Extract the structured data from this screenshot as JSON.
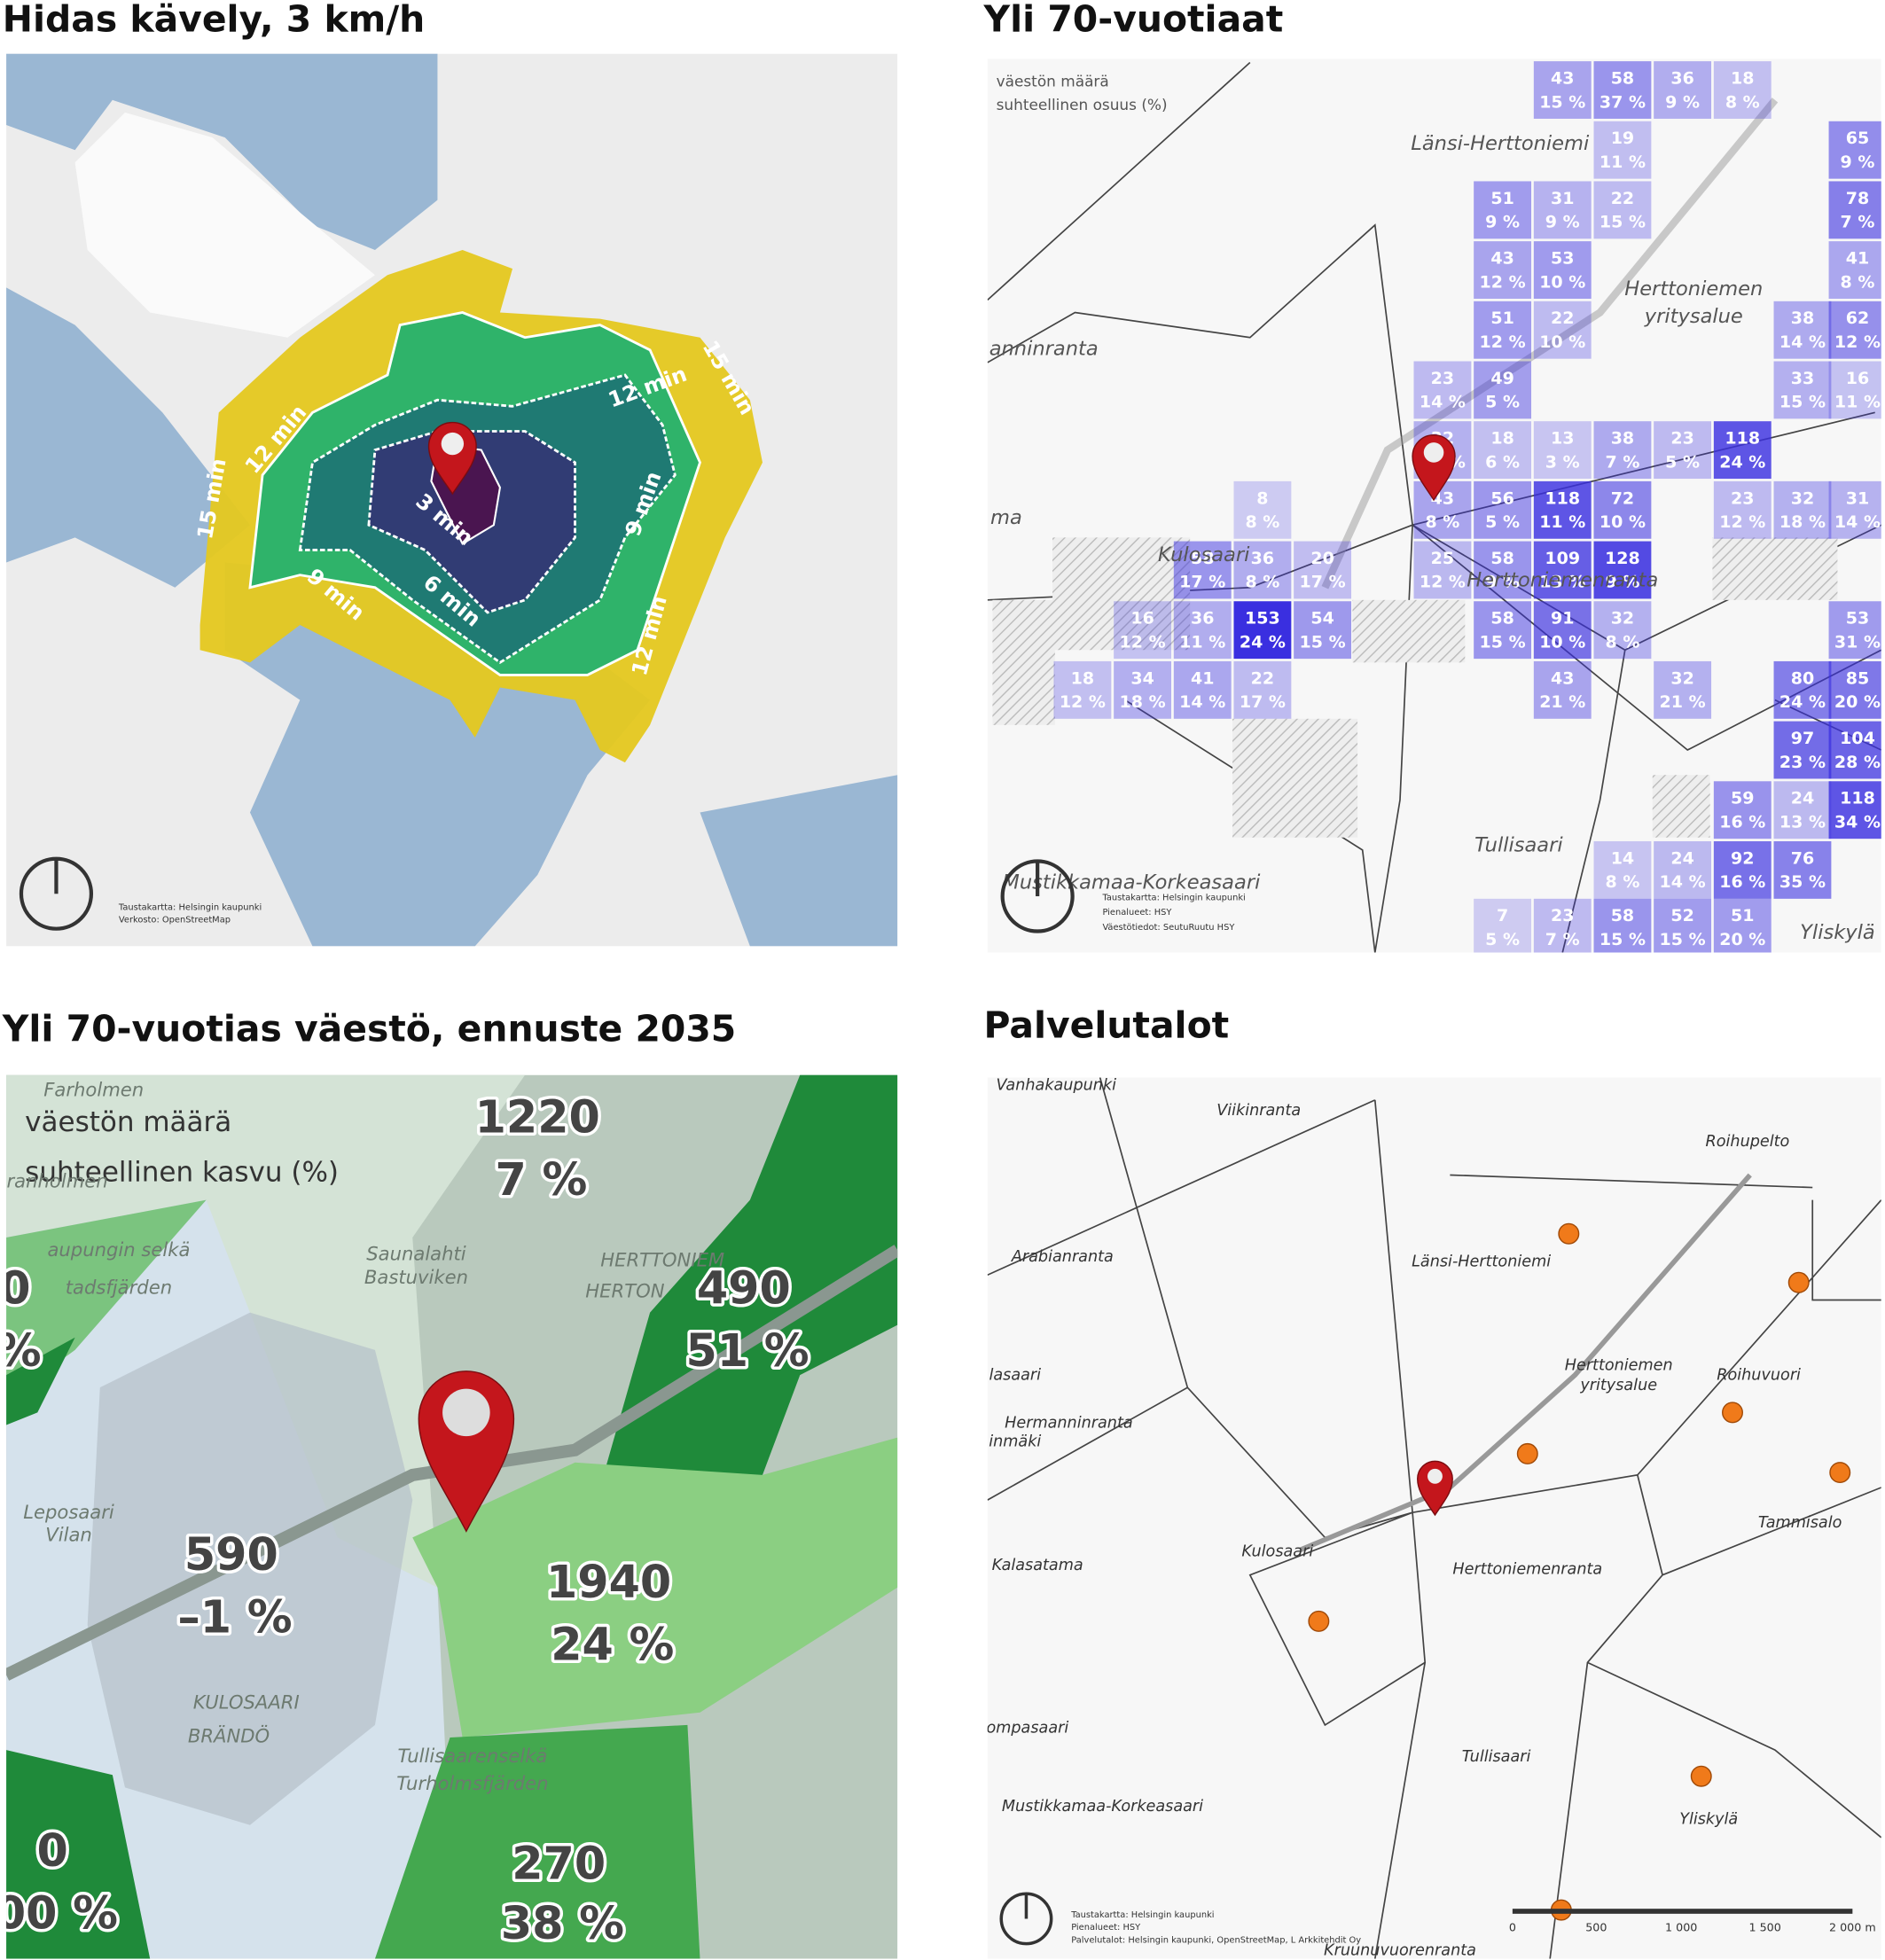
{
  "panels": [
    {
      "title": "Hidas kävely, 3 km/h",
      "isochrone_labels": [
        "15 min",
        "12 min",
        "12 min",
        "15 min",
        "9 min",
        "3 min",
        "9 min",
        "6 min",
        "12 min"
      ],
      "credits": [
        "Taustakartta: Helsingin kaupunki",
        "Verkosto: OpenStreetMap"
      ]
    },
    {
      "title": "Yli 70-vuotiaat",
      "legend": [
        "väestön määrä",
        "suhteellinen osuus (%)"
      ],
      "places": [
        "Länsi-Herttoniemi",
        "Herttoniemen",
        "yritysalue",
        "anninranta",
        "ma",
        "Kulosaari",
        "Herttoniemenranta",
        "Tullisaari",
        "Mustikkamaa-Korkeasaari",
        "Yliskylä"
      ],
      "cells": [
        {
          "count": 43,
          "share": "15 %"
        },
        {
          "count": 58,
          "share": "37 %"
        },
        {
          "count": 36,
          "share": "9 %"
        },
        {
          "count": 18,
          "share": "8 %"
        },
        {
          "count": 19,
          "share": "11 %"
        },
        {
          "count": 65,
          "share": "9 %"
        },
        {
          "count": 51,
          "share": "9 %"
        },
        {
          "count": 31,
          "share": "9 %"
        },
        {
          "count": 22,
          "share": "15 %"
        },
        {
          "count": 78,
          "share": "7 %"
        },
        {
          "count": 43,
          "share": "12 %"
        },
        {
          "count": 53,
          "share": "10 %"
        },
        {
          "count": 41,
          "share": "8 %"
        },
        {
          "count": 51,
          "share": "12 %"
        },
        {
          "count": 22,
          "share": "10 %"
        },
        {
          "count": 38,
          "share": "14 %"
        },
        {
          "count": 62,
          "share": "12 %"
        },
        {
          "count": 23,
          "share": "14 %"
        },
        {
          "count": 49,
          "share": "5 %"
        },
        {
          "count": 33,
          "share": "15 %"
        },
        {
          "count": 16,
          "share": "11 %"
        },
        {
          "count": 32,
          "share": "17 %"
        },
        {
          "count": 18,
          "share": "6 %"
        },
        {
          "count": 13,
          "share": "3 %"
        },
        {
          "count": 38,
          "share": "7 %"
        },
        {
          "count": 23,
          "share": "5 %"
        },
        {
          "count": 118,
          "share": "24 %"
        },
        {
          "count": 8,
          "share": "8 %"
        },
        {
          "count": 43,
          "share": "8 %"
        },
        {
          "count": 56,
          "share": "5 %"
        },
        {
          "count": 118,
          "share": "11 %"
        },
        {
          "count": 72,
          "share": "10 %"
        },
        {
          "count": 23,
          "share": "12 %"
        },
        {
          "count": 32,
          "share": "18 %"
        },
        {
          "count": 31,
          "share": "14 %"
        },
        {
          "count": 58,
          "share": "17 %"
        },
        {
          "count": 36,
          "share": "8 %"
        },
        {
          "count": 20,
          "share": "17 %"
        },
        {
          "count": 25,
          "share": "12 %"
        },
        {
          "count": 58,
          "share": "9 %"
        },
        {
          "count": 109,
          "share": "13 %"
        },
        {
          "count": 128,
          "share": "9 %"
        },
        {
          "count": 16,
          "share": "12 %"
        },
        {
          "count": 36,
          "share": "11 %"
        },
        {
          "count": 153,
          "share": "24 %"
        },
        {
          "count": 54,
          "share": "15 %"
        },
        {
          "count": 58,
          "share": "15 %"
        },
        {
          "count": 91,
          "share": "10 %"
        },
        {
          "count": 32,
          "share": "8 %"
        },
        {
          "count": 53,
          "share": "31 %"
        },
        {
          "count": 18,
          "share": "12 %"
        },
        {
          "count": 34,
          "share": "18 %"
        },
        {
          "count": 41,
          "share": "14 %"
        },
        {
          "count": 22,
          "share": "17 %"
        },
        {
          "count": 43,
          "share": "21 %"
        },
        {
          "count": 32,
          "share": "21 %"
        },
        {
          "count": 80,
          "share": "24 %"
        },
        {
          "count": 85,
          "share": "20 %"
        },
        {
          "count": 97,
          "share": "23 %"
        },
        {
          "count": 104,
          "share": "28 %"
        },
        {
          "count": 59,
          "share": "16 %"
        },
        {
          "count": 24,
          "share": "13 %"
        },
        {
          "count": 118,
          "share": "34 %"
        },
        {
          "count": 14,
          "share": "8 %"
        },
        {
          "count": 24,
          "share": "14 %"
        },
        {
          "count": 92,
          "share": "16 %"
        },
        {
          "count": 76,
          "share": "35 %"
        },
        {
          "count": 7,
          "share": "5 %"
        },
        {
          "count": 23,
          "share": "7 %"
        },
        {
          "count": 58,
          "share": "15 %"
        },
        {
          "count": 52,
          "share": "15 %"
        },
        {
          "count": 51,
          "share": "20 %"
        }
      ],
      "credits": [
        "Taustakartta: Helsingin kaupunki",
        "Pienalueet: HSY",
        "Väestötiedot: SeutuRuutu HSY"
      ]
    },
    {
      "title": "Yli 70-vuotias väestö, ennuste 2035",
      "legend": [
        "väestön määrä",
        "suhteellinen kasvu (%)"
      ],
      "areas": [
        {
          "count": 1220,
          "change": "7 %"
        },
        {
          "count": 490,
          "change": "51 %"
        },
        {
          "count": 590,
          "change": "–1 %"
        },
        {
          "count": 1940,
          "change": "24 %"
        },
        {
          "count": 270,
          "change": "38 %"
        },
        {
          "count": 0,
          "change": "%"
        },
        {
          "count": 0,
          "change": "00 %"
        }
      ],
      "places": [
        "Farholmen",
        "Granholmen",
        "aupungin selkä",
        "tadsfjärden",
        "Saunalahti",
        "Bastuviken",
        "HERTTONIEM",
        "HERTON",
        "Leposaari",
        "Vilan",
        "KULOSAARI",
        "BRÄNDÖ",
        "Tullisaarenselkä",
        "Turholmsfjärden"
      ]
    },
    {
      "title": "Palvelutalot",
      "places": [
        "Vanhakaupunki",
        "Viikinranta",
        "Roihupelto",
        "Arabianranta",
        "Länsi-Herttoniemi",
        "Herttoniemen",
        "yritysalue",
        "Roihuvuori",
        "lasaari",
        "Hermanninranta",
        "inmäki",
        "Tammisalo",
        "Kalasatama",
        "Kulosaari",
        "Herttoniemenranta",
        "ompasaari",
        "Tullisaari",
        "Mustikkamaa-Korkeasaari",
        "Yliskylä",
        "Kruunuvuorenranta"
      ],
      "scale": [
        "0",
        "500",
        "1 000",
        "1 500",
        "2 000 m"
      ],
      "credits": [
        "Taustakartta: Helsingin kaupunki",
        "Pienalueet: HSY",
        "Palvelutalot: Helsingin kaupunki, OpenStreetMap, L Arkkitehdit Oy"
      ]
    }
  ]
}
